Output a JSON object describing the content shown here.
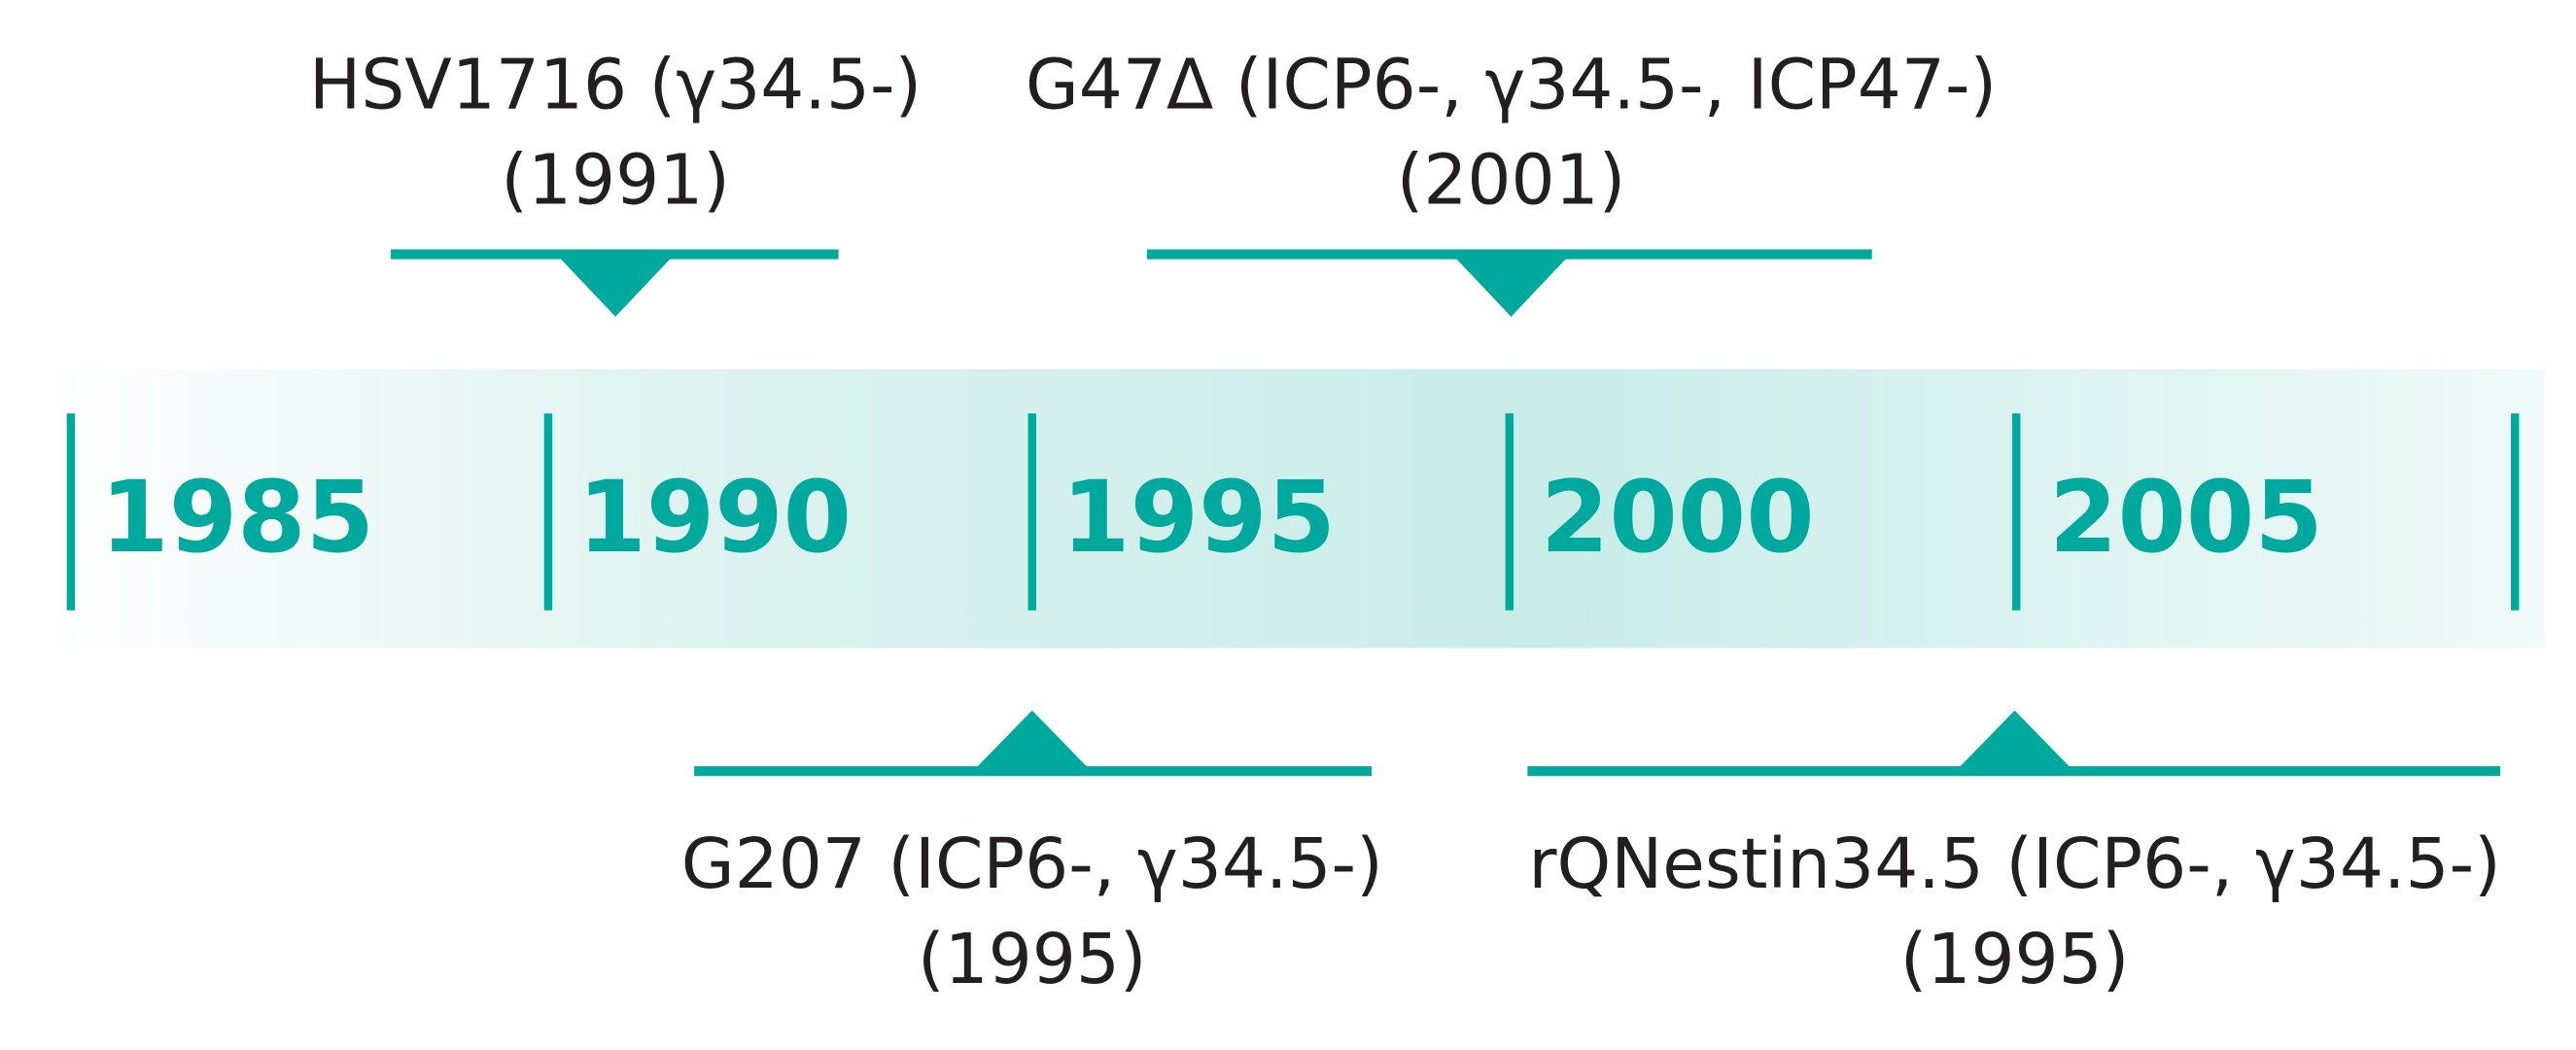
{
  "timeline": {
    "years": [
      "1985",
      "1990",
      "1995",
      "2000",
      "2005"
    ]
  },
  "events": [
    {
      "label": "HSV1716 (γ34.5-)",
      "year": "(1991)"
    },
    {
      "label": "G47Δ (ICP6-, γ34.5-, ICP47-)",
      "year": "(2001)"
    },
    {
      "label": "G207 (ICP6-, γ34.5-)",
      "year": "(1995)"
    },
    {
      "label": "rQNestin34.5 (ICP6-, γ34.5-)",
      "year": "(1995)"
    }
  ]
}
